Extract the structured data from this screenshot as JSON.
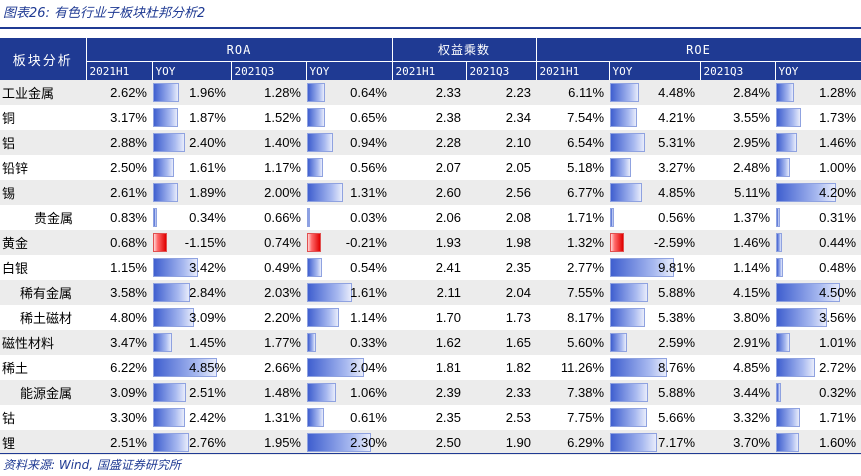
{
  "title": "图表26: 有色行业子板块杜邦分析2",
  "source": "资料来源: Wind, 国盛证券研究所",
  "colors": {
    "header": "#1f3a93",
    "bar_positive": "#3f5fcf",
    "bar_negative": "#e00000"
  },
  "header": {
    "corner": "板块分析",
    "groups": [
      "ROA",
      "权益乘数",
      "ROE"
    ],
    "subheaders": [
      "2021H1",
      "YOY",
      "2021Q3",
      "YOY",
      "2021H1",
      "2021Q3",
      "2021H1",
      "YOY",
      "2021Q3",
      "YOY"
    ]
  },
  "rows": [
    {
      "name": "工业金属",
      "roa_h1": "2.62%",
      "roa_yoy1": "1.96%",
      "roa_q3": "1.28%",
      "roa_yoy2": "0.64%",
      "em_h1": "2.33",
      "em_q3": "2.23",
      "roe_h1": "6.11%",
      "roe_yoy1": "4.48%",
      "roe_q3": "2.84%",
      "roe_yoy2": "1.28%"
    },
    {
      "name": "铜",
      "roa_h1": "3.17%",
      "roa_yoy1": "1.87%",
      "roa_q3": "1.52%",
      "roa_yoy2": "0.65%",
      "em_h1": "2.38",
      "em_q3": "2.34",
      "roe_h1": "7.54%",
      "roe_yoy1": "4.21%",
      "roe_q3": "3.55%",
      "roe_yoy2": "1.73%"
    },
    {
      "name": "铝",
      "roa_h1": "2.88%",
      "roa_yoy1": "2.40%",
      "roa_q3": "1.40%",
      "roa_yoy2": "0.94%",
      "em_h1": "2.28",
      "em_q3": "2.10",
      "roe_h1": "6.54%",
      "roe_yoy1": "5.31%",
      "roe_q3": "2.95%",
      "roe_yoy2": "1.46%"
    },
    {
      "name": "铅锌",
      "roa_h1": "2.50%",
      "roa_yoy1": "1.61%",
      "roa_q3": "1.17%",
      "roa_yoy2": "0.56%",
      "em_h1": "2.07",
      "em_q3": "2.05",
      "roe_h1": "5.18%",
      "roe_yoy1": "3.27%",
      "roe_q3": "2.48%",
      "roe_yoy2": "1.00%"
    },
    {
      "name": "锡",
      "roa_h1": "2.61%",
      "roa_yoy1": "1.89%",
      "roa_q3": "2.00%",
      "roa_yoy2": "1.31%",
      "em_h1": "2.60",
      "em_q3": "2.56",
      "roe_h1": "6.77%",
      "roe_yoy1": "4.85%",
      "roe_q3": "5.11%",
      "roe_yoy2": "4.20%"
    },
    {
      "name": "贵金属",
      "roa_h1": "0.83%",
      "roa_yoy1": "0.34%",
      "roa_q3": "0.66%",
      "roa_yoy2": "0.03%",
      "em_h1": "2.06",
      "em_q3": "2.08",
      "roe_h1": "1.71%",
      "roe_yoy1": "0.56%",
      "roe_q3": "1.37%",
      "roe_yoy2": "0.31%"
    },
    {
      "name": "黄金",
      "roa_h1": "0.68%",
      "roa_yoy1": "-1.15%",
      "roa_q3": "0.74%",
      "roa_yoy2": "-0.21%",
      "em_h1": "1.93",
      "em_q3": "1.98",
      "roe_h1": "1.32%",
      "roe_yoy1": "-2.59%",
      "roe_q3": "1.46%",
      "roe_yoy2": "0.44%"
    },
    {
      "name": "白银",
      "roa_h1": "1.15%",
      "roa_yoy1": "3.42%",
      "roa_q3": "0.49%",
      "roa_yoy2": "0.54%",
      "em_h1": "2.41",
      "em_q3": "2.35",
      "roe_h1": "2.77%",
      "roe_yoy1": "9.81%",
      "roe_q3": "1.14%",
      "roe_yoy2": "0.48%"
    },
    {
      "name": "稀有金属",
      "roa_h1": "3.58%",
      "roa_yoy1": "2.84%",
      "roa_q3": "2.03%",
      "roa_yoy2": "1.61%",
      "em_h1": "2.11",
      "em_q3": "2.04",
      "roe_h1": "7.55%",
      "roe_yoy1": "5.88%",
      "roe_q3": "4.15%",
      "roe_yoy2": "4.50%"
    },
    {
      "name": "稀土磁材",
      "roa_h1": "4.80%",
      "roa_yoy1": "3.09%",
      "roa_q3": "2.20%",
      "roa_yoy2": "1.14%",
      "em_h1": "1.70",
      "em_q3": "1.73",
      "roe_h1": "8.17%",
      "roe_yoy1": "5.38%",
      "roe_q3": "3.80%",
      "roe_yoy2": "3.56%"
    },
    {
      "name": "磁性材料",
      "roa_h1": "3.47%",
      "roa_yoy1": "1.45%",
      "roa_q3": "1.77%",
      "roa_yoy2": "0.33%",
      "em_h1": "1.62",
      "em_q3": "1.65",
      "roe_h1": "5.60%",
      "roe_yoy1": "2.59%",
      "roe_q3": "2.91%",
      "roe_yoy2": "1.01%"
    },
    {
      "name": "稀土",
      "roa_h1": "6.22%",
      "roa_yoy1": "4.85%",
      "roa_q3": "2.66%",
      "roa_yoy2": "2.04%",
      "em_h1": "1.81",
      "em_q3": "1.82",
      "roe_h1": "11.26%",
      "roe_yoy1": "8.76%",
      "roe_q3": "4.85%",
      "roe_yoy2": "2.72%"
    },
    {
      "name": "能源金属",
      "roa_h1": "3.09%",
      "roa_yoy1": "2.51%",
      "roa_q3": "1.48%",
      "roa_yoy2": "1.06%",
      "em_h1": "2.39",
      "em_q3": "2.33",
      "roe_h1": "7.38%",
      "roe_yoy1": "5.88%",
      "roe_q3": "3.44%",
      "roe_yoy2": "0.32%"
    },
    {
      "name": "钴",
      "roa_h1": "3.30%",
      "roa_yoy1": "2.42%",
      "roa_q3": "1.31%",
      "roa_yoy2": "0.61%",
      "em_h1": "2.35",
      "em_q3": "2.53",
      "roe_h1": "7.75%",
      "roe_yoy1": "5.66%",
      "roe_q3": "3.32%",
      "roe_yoy2": "1.71%"
    },
    {
      "name": "锂",
      "roa_h1": "2.51%",
      "roa_yoy1": "2.76%",
      "roa_q3": "1.95%",
      "roa_yoy2": "2.30%",
      "em_h1": "2.50",
      "em_q3": "1.90",
      "roe_h1": "6.29%",
      "roe_yoy1": "7.17%",
      "roe_q3": "3.70%",
      "roe_yoy2": "1.60%"
    }
  ]
}
